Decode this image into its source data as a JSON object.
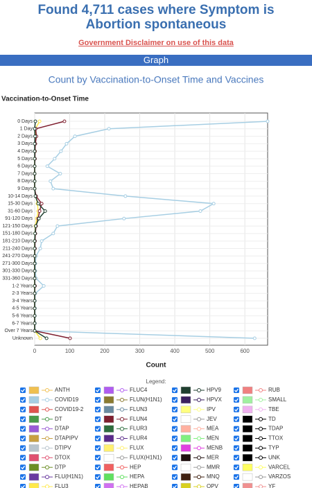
{
  "header": {
    "title": "Found 4,711 cases where Symptom is Abortion spontaneous",
    "disclaimer": "Government Disclaimer on use of this data",
    "section": "Graph"
  },
  "chart_data": {
    "type": "line",
    "orientation": "horizontal",
    "title": "Count by Vaccination-to-Onset Time and Vaccines",
    "y_label": "Vaccination-to-Onset Time",
    "x_label": "Count",
    "categories": [
      "0 Days",
      "1 Day",
      "2 Days",
      "3 Days",
      "4 Days",
      "5 Days",
      "6 Days",
      "7 Days",
      "8 Days",
      "9 Days",
      "10-14 Days",
      "15-30 Days",
      "31-60 Days",
      "91-120 Days",
      "121-150 Days",
      "151-180 Days",
      "181-210 Days",
      "211-240 Days",
      "241-270 Days",
      "271-300 Days",
      "301-330 Days",
      "331-360 Days",
      "1-2 Years",
      "2-3 Years",
      "3-4 Years",
      "4-5 Years",
      "5-6 Years",
      "6-7 Years",
      "Over 7 Years",
      "Unknown"
    ],
    "xlim": [
      0,
      665
    ],
    "xticks": [
      0,
      100,
      200,
      300,
      400,
      500,
      600
    ],
    "grid": true,
    "legend_title": "Legend:",
    "series": [
      {
        "name": "ANTH",
        "color": "#f0c050"
      },
      {
        "name": "COVID19",
        "color": "#a6cee3",
        "values": [
          665,
          212,
          115,
          91,
          75,
          57,
          36,
          73,
          45,
          53,
          259,
          511,
          473,
          255,
          65,
          53,
          20,
          16,
          4,
          2,
          2,
          4,
          26,
          2,
          1,
          1,
          1,
          1,
          1,
          628
        ]
      },
      {
        "name": "COVID19-2",
        "color": "#e0524f"
      },
      {
        "name": "DT",
        "color": "#4a9a4a"
      },
      {
        "name": "DTAP",
        "color": "#9a5bd6"
      },
      {
        "name": "DTAPIPV",
        "color": "#c8a040"
      },
      {
        "name": "DTIPV",
        "color": "#b8c4cc"
      },
      {
        "name": "DTOX",
        "color": "#e05070"
      },
      {
        "name": "DTP",
        "color": "#6b8e23"
      },
      {
        "name": "FLU(H1N1)",
        "color": "#6a3aa0"
      },
      {
        "name": "FLU3",
        "color": "#ffe94a",
        "values": [
          14,
          2,
          2,
          1,
          1,
          0,
          0,
          0,
          0,
          0,
          3,
          8,
          10,
          6,
          2,
          1,
          0,
          0,
          0,
          0,
          0,
          0,
          0,
          0,
          0,
          0,
          0,
          0,
          0,
          16
        ]
      },
      {
        "name": "FLUC4",
        "color": "#b05cf0"
      },
      {
        "name": "FLUN(H1N1)",
        "color": "#8a7a30"
      },
      {
        "name": "FLUN3",
        "color": "#6a8aa0"
      },
      {
        "name": "FLUN4",
        "color": "#7f1f2f",
        "values": [
          85,
          3,
          5,
          2,
          1,
          1,
          0,
          0,
          0,
          0,
          4,
          20,
          14,
          10,
          4,
          2,
          1,
          1,
          0,
          0,
          0,
          0,
          1,
          0,
          0,
          0,
          0,
          0,
          0,
          101
        ]
      },
      {
        "name": "FLUR3",
        "color": "#2e6e3e"
      },
      {
        "name": "FLUR4",
        "color": "#5a2a8a"
      },
      {
        "name": "FLUX",
        "color": "#fff070"
      },
      {
        "name": "FLUX(H1N1)",
        "color": "#ffffff"
      },
      {
        "name": "HEP",
        "color": "#f06060"
      },
      {
        "name": "HEPA",
        "color": "#60e060"
      },
      {
        "name": "HEPAB",
        "color": "#d070f0"
      },
      {
        "name": "HPV9",
        "color": "#1f3f2f",
        "values": [
          2,
          0,
          1,
          0,
          0,
          0,
          0,
          0,
          0,
          0,
          2,
          10,
          30,
          12,
          3,
          1,
          0,
          0,
          0,
          0,
          0,
          0,
          0,
          0,
          0,
          0,
          0,
          0,
          0,
          34
        ]
      },
      {
        "name": "HPVX",
        "color": "#3a1f5f"
      },
      {
        "name": "IPV",
        "color": "#ffff80"
      },
      {
        "name": "JEV",
        "color": "#ffffff"
      },
      {
        "name": "MEA",
        "color": "#ffb0a0"
      },
      {
        "name": "MEN",
        "color": "#80f080"
      },
      {
        "name": "MENB",
        "color": "#e040e0"
      },
      {
        "name": "MER",
        "color": "#201010"
      },
      {
        "name": "MMR",
        "color": "#ffffff"
      },
      {
        "name": "MNQ",
        "color": "#3f2010"
      },
      {
        "name": "OPV",
        "color": "#d8d020"
      },
      {
        "name": "RUB",
        "color": "#f08080"
      },
      {
        "name": "SMALL",
        "color": "#a0f0a0"
      },
      {
        "name": "TBE",
        "color": "#f0b0f0"
      },
      {
        "name": "TD",
        "color": "#000000"
      },
      {
        "name": "TDAP",
        "color": "#000000"
      },
      {
        "name": "TTOX",
        "color": "#000000"
      },
      {
        "name": "TYP",
        "color": "#000000"
      },
      {
        "name": "UNK",
        "color": "#000000"
      },
      {
        "name": "VARCEL",
        "color": "#ffff60"
      },
      {
        "name": "VARZOS",
        "color": "#ffffff"
      },
      {
        "name": "YF",
        "color": "#f09090"
      }
    ]
  }
}
